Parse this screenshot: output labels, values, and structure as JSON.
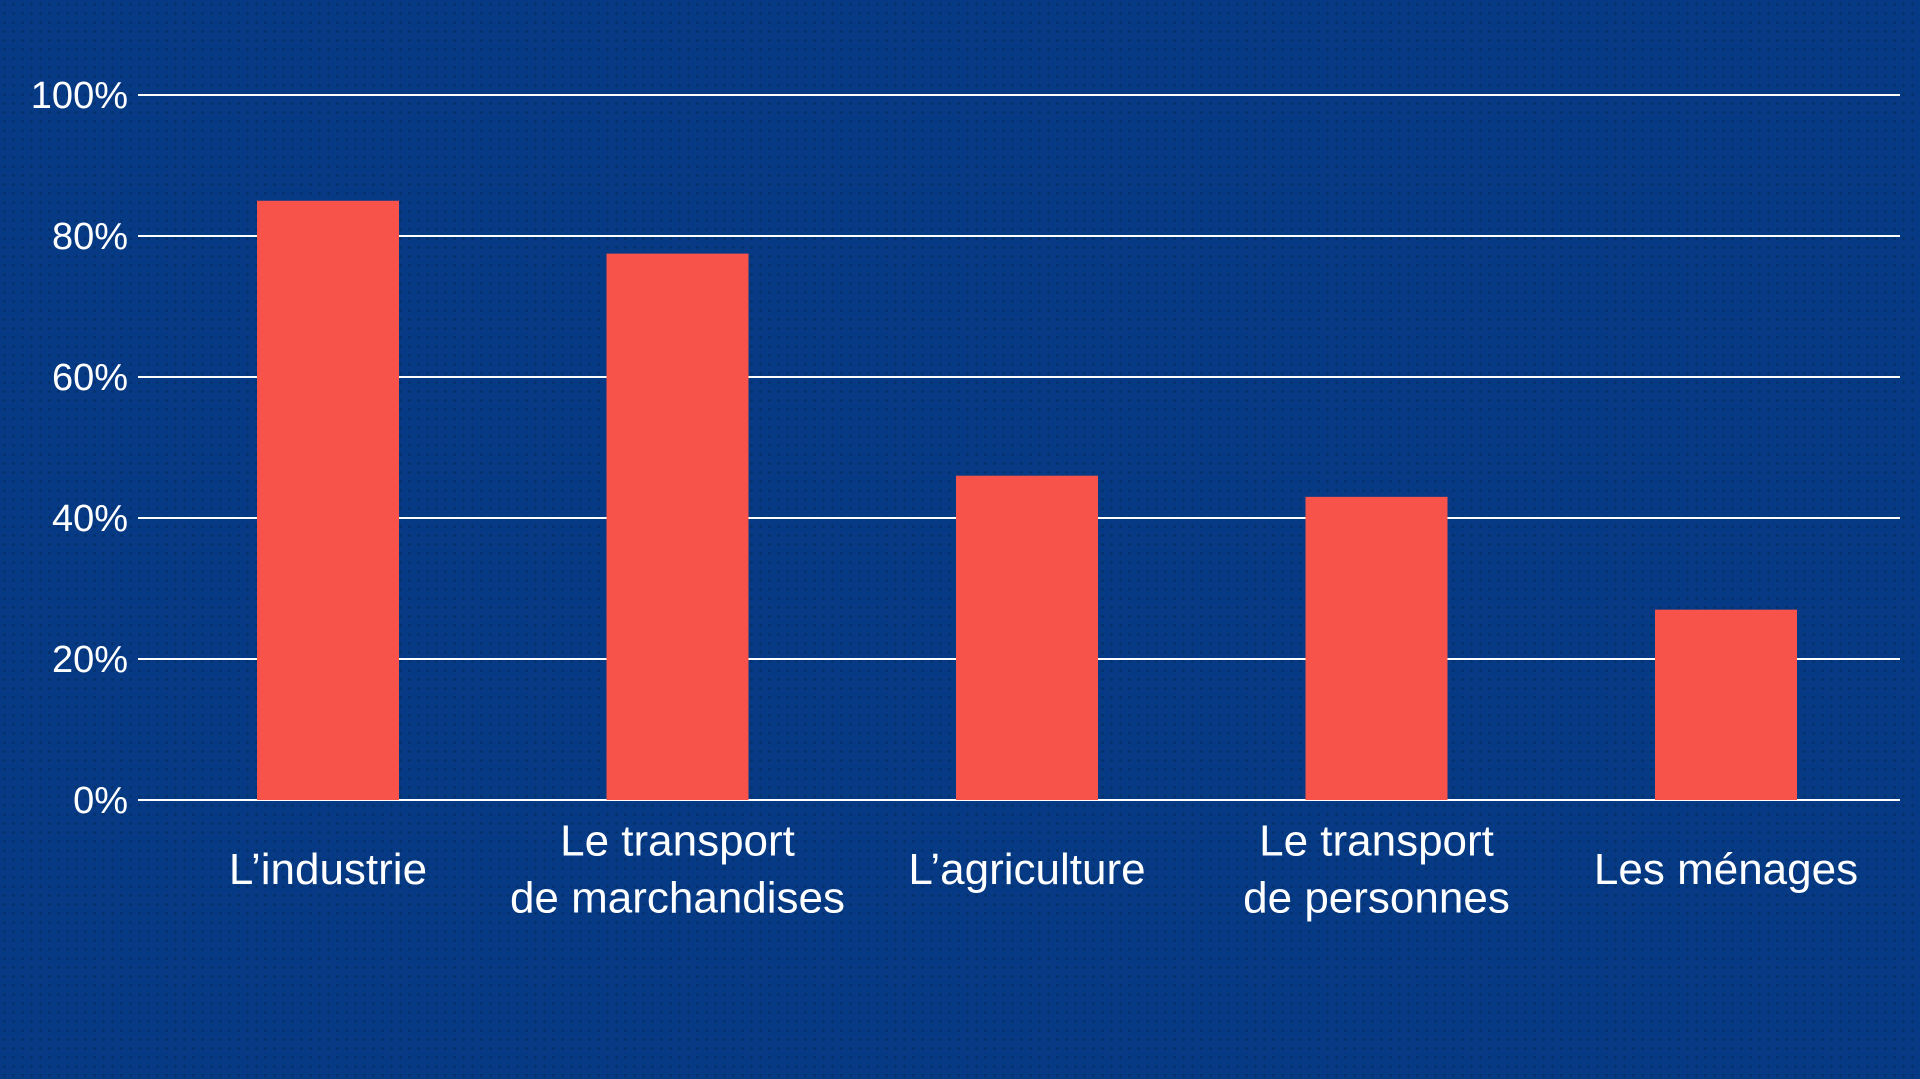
{
  "chart_data": {
    "type": "bar",
    "title": "",
    "xlabel": "",
    "ylabel": "",
    "categories": [
      [
        "L’industrie"
      ],
      [
        "Le transport",
        "de marchandises"
      ],
      [
        "L’agriculture"
      ],
      [
        "Le transport",
        "de personnes"
      ],
      [
        "Les ménages"
      ]
    ],
    "values": [
      85,
      77.5,
      46,
      43,
      27
    ],
    "ylim": [
      0,
      100
    ],
    "yticks": [
      "0%",
      "20%",
      "40%",
      "60%",
      "80%",
      "100%"
    ],
    "grid": true,
    "legend": "none",
    "colors": {
      "bar": "#f8534a",
      "background": "#063a84",
      "gridline": "#ffffff",
      "text": "#ffffff"
    }
  }
}
